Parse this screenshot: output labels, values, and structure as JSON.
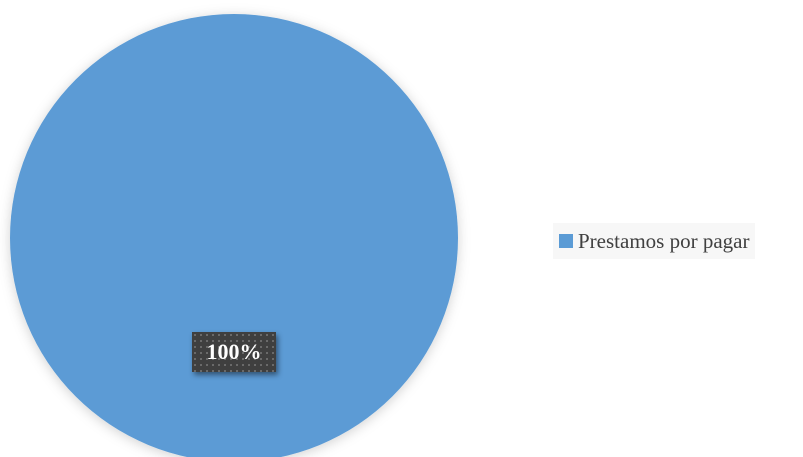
{
  "chart_data": {
    "type": "pie",
    "title": "",
    "categories": [
      "Prestamos por pagar"
    ],
    "values": [
      100
    ],
    "data_labels": [
      "100%"
    ],
    "colors": [
      "#5b9bd5"
    ],
    "legend_placement": "right",
    "legend": [
      "Prestamos por pagar"
    ]
  }
}
